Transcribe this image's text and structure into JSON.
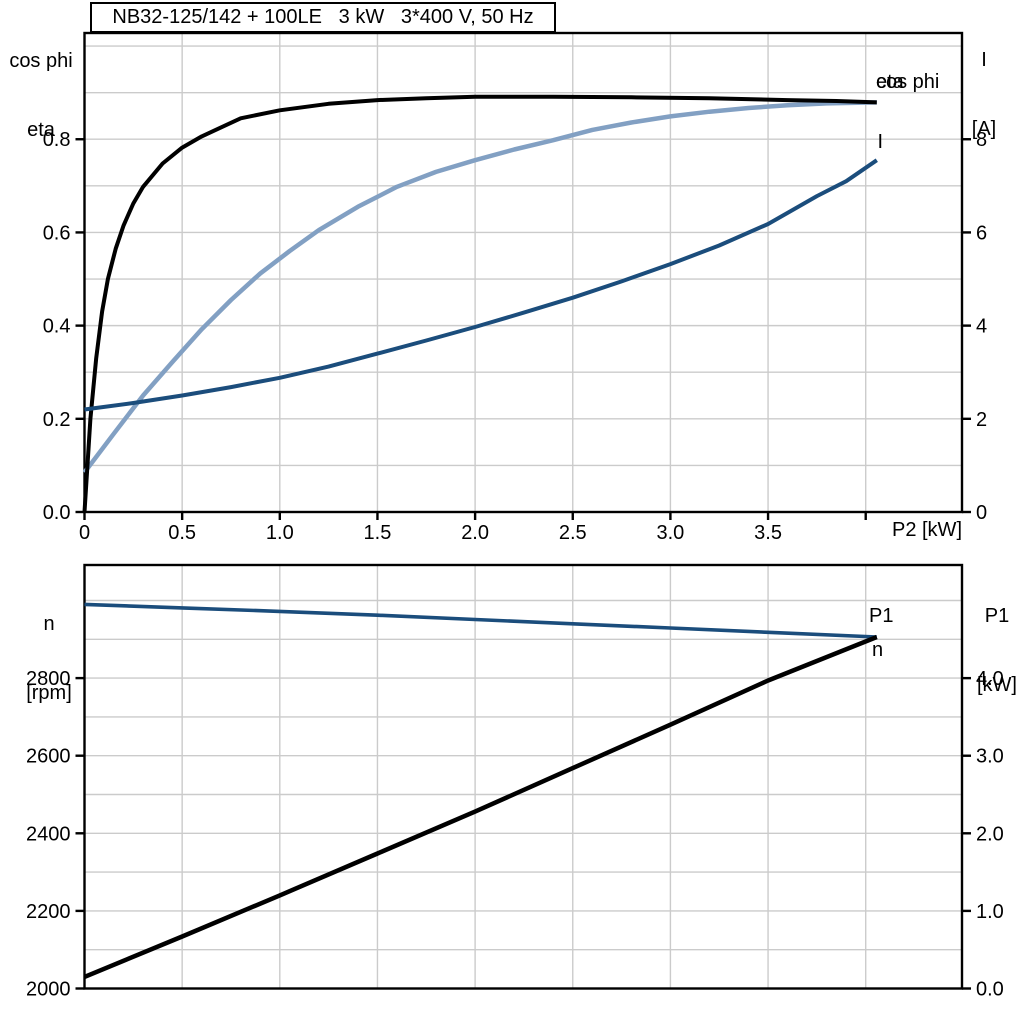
{
  "title_box": {
    "text": "NB32-125/142 + 100LE   3 kW   3*400 V, 50 Hz"
  },
  "colors": {
    "black": "#000000",
    "navy": "#1b4d7c",
    "steel": "#82a0c3",
    "grid": "#cbcbcb",
    "axis": "#000000"
  },
  "chart_data": [
    {
      "type": "line",
      "name": "motor-curves-upper",
      "x_axis": {
        "label": "P2 [kW]",
        "min": 0,
        "max": 4.493,
        "grid": [
          0.5,
          1,
          1.5,
          2,
          2.5,
          3,
          3.5,
          4
        ],
        "ticks": [
          {
            "v": 0,
            "t": "0"
          },
          {
            "v": 0.5,
            "t": "0.5"
          },
          {
            "v": 1,
            "t": "1.0"
          },
          {
            "v": 1.5,
            "t": "1.5"
          },
          {
            "v": 2,
            "t": "2.0"
          },
          {
            "v": 2.5,
            "t": "2.5"
          },
          {
            "v": 3,
            "t": "3.0"
          },
          {
            "v": 3.5,
            "t": "3.5"
          },
          {
            "v": 4,
            "t": ""
          }
        ]
      },
      "y_left": {
        "label_lines": [
          "cos phi",
          "eta"
        ],
        "min": 0,
        "max": 1.028,
        "grid": [
          0.1,
          0.2,
          0.3,
          0.4,
          0.5,
          0.6,
          0.7,
          0.8,
          0.9,
          1.0
        ],
        "ticks": [
          {
            "v": 0,
            "t": "0.0"
          },
          {
            "v": 0.2,
            "t": "0.2"
          },
          {
            "v": 0.4,
            "t": "0.4"
          },
          {
            "v": 0.6,
            "t": "0.6"
          },
          {
            "v": 0.8,
            "t": "0.8"
          }
        ]
      },
      "y_right": {
        "label_lines": [
          "I",
          "[A]"
        ],
        "min": 0,
        "max": 10.28,
        "grid": [],
        "ticks": [
          {
            "v": 0,
            "t": "0"
          },
          {
            "v": 2,
            "t": "2"
          },
          {
            "v": 4,
            "t": "4"
          },
          {
            "v": 6,
            "t": "6"
          },
          {
            "v": 8,
            "t": "8"
          }
        ]
      },
      "series": [
        {
          "id": "cos-phi",
          "label": "cos phi",
          "axis": "left",
          "color": "steel",
          "width": 4.5,
          "label_at": [
            791.5,
            55
          ],
          "points": [
            [
              0,
              0.085
            ],
            [
              0.15,
              0.168
            ],
            [
              0.3,
              0.25
            ],
            [
              0.45,
              0.322
            ],
            [
              0.6,
              0.392
            ],
            [
              0.75,
              0.455
            ],
            [
              0.9,
              0.512
            ],
            [
              1.05,
              0.56
            ],
            [
              1.2,
              0.605
            ],
            [
              1.4,
              0.655
            ],
            [
              1.6,
              0.698
            ],
            [
              1.8,
              0.73
            ],
            [
              2.0,
              0.755
            ],
            [
              2.2,
              0.778
            ],
            [
              2.4,
              0.798
            ],
            [
              2.6,
              0.82
            ],
            [
              2.8,
              0.836
            ],
            [
              3.0,
              0.849
            ],
            [
              3.2,
              0.859
            ],
            [
              3.4,
              0.867
            ],
            [
              3.6,
              0.873
            ],
            [
              3.8,
              0.877
            ],
            [
              4.057,
              0.879
            ]
          ]
        },
        {
          "id": "eta",
          "label": "eta",
          "axis": "left",
          "color": "black",
          "width": 4,
          "label_at": [
            791.5,
            55
          ],
          "points": [
            [
              0,
              0
            ],
            [
              0.03,
              0.2
            ],
            [
              0.06,
              0.33
            ],
            [
              0.09,
              0.43
            ],
            [
              0.12,
              0.5
            ],
            [
              0.16,
              0.565
            ],
            [
              0.2,
              0.615
            ],
            [
              0.25,
              0.662
            ],
            [
              0.3,
              0.698
            ],
            [
              0.4,
              0.748
            ],
            [
              0.5,
              0.782
            ],
            [
              0.6,
              0.806
            ],
            [
              0.8,
              0.845
            ],
            [
              1.0,
              0.862
            ],
            [
              1.25,
              0.876
            ],
            [
              1.5,
              0.884
            ],
            [
              1.75,
              0.888
            ],
            [
              2.0,
              0.891
            ],
            [
              2.4,
              0.891
            ],
            [
              2.8,
              0.89
            ],
            [
              3.2,
              0.888
            ],
            [
              3.6,
              0.884
            ],
            [
              3.85,
              0.882
            ],
            [
              4.057,
              0.879
            ]
          ]
        },
        {
          "id": "current",
          "label": "I",
          "axis": "right",
          "color": "navy",
          "width": 4,
          "label_at": [
            793,
            115
          ],
          "points": [
            [
              0,
              2.2
            ],
            [
              0.25,
              2.34
            ],
            [
              0.5,
              2.5
            ],
            [
              0.75,
              2.68
            ],
            [
              1.0,
              2.88
            ],
            [
              1.25,
              3.12
            ],
            [
              1.5,
              3.4
            ],
            [
              1.75,
              3.68
            ],
            [
              2.0,
              3.97
            ],
            [
              2.25,
              4.28
            ],
            [
              2.5,
              4.6
            ],
            [
              2.75,
              4.95
            ],
            [
              3.0,
              5.32
            ],
            [
              3.25,
              5.72
            ],
            [
              3.5,
              6.18
            ],
            [
              3.75,
              6.78
            ],
            [
              3.9,
              7.1
            ],
            [
              4.057,
              7.55
            ]
          ]
        }
      ]
    },
    {
      "type": "line",
      "name": "motor-curves-lower",
      "x_axis": {
        "label": "",
        "min": 0,
        "max": 4.493,
        "grid": [
          0.5,
          1,
          1.5,
          2,
          2.5,
          3,
          3.5,
          4
        ],
        "ticks": []
      },
      "y_left": {
        "label_lines": [
          "n",
          "[rpm]"
        ],
        "min": 2000,
        "max": 3091.5,
        "grid": [
          2100,
          2200,
          2300,
          2400,
          2500,
          2600,
          2700,
          2800,
          2900,
          3000
        ],
        "ticks": [
          {
            "v": 2000,
            "t": "2000"
          },
          {
            "v": 2200,
            "t": "2200"
          },
          {
            "v": 2400,
            "t": "2400"
          },
          {
            "v": 2600,
            "t": "2600"
          },
          {
            "v": 2800,
            "t": "2800"
          }
        ]
      },
      "y_right": {
        "label_lines": [
          "P1",
          "[kW]"
        ],
        "min": 0,
        "max": 5.458,
        "grid": [],
        "ticks": [
          {
            "v": 0,
            "t": "0.0"
          },
          {
            "v": 1,
            "t": "1.0"
          },
          {
            "v": 2,
            "t": "2.0"
          },
          {
            "v": 3,
            "t": "3.0"
          },
          {
            "v": 4,
            "t": "4.0"
          }
        ]
      },
      "series": [
        {
          "id": "speed",
          "label": "n",
          "axis": "left",
          "color": "navy",
          "width": 3.6,
          "label_at": [
            787.5,
            91
          ],
          "points": [
            [
              0,
              2990
            ],
            [
              0.5,
              2981
            ],
            [
              1.0,
              2972
            ],
            [
              1.5,
              2962
            ],
            [
              2.0,
              2951
            ],
            [
              2.5,
              2940
            ],
            [
              3.0,
              2929
            ],
            [
              3.5,
              2918
            ],
            [
              4.057,
              2906
            ]
          ]
        },
        {
          "id": "input-power",
          "label": "P1",
          "axis": "right",
          "color": "black",
          "width": 4.5,
          "label_at": [
            784.5,
            57
          ],
          "points": [
            [
              0,
              0.15
            ],
            [
              0.5,
              0.67
            ],
            [
              1.0,
              1.2
            ],
            [
              1.5,
              1.74
            ],
            [
              2.0,
              2.28
            ],
            [
              2.5,
              2.84
            ],
            [
              3.0,
              3.4
            ],
            [
              3.5,
              3.97
            ],
            [
              4.057,
              4.53
            ]
          ]
        }
      ]
    }
  ]
}
